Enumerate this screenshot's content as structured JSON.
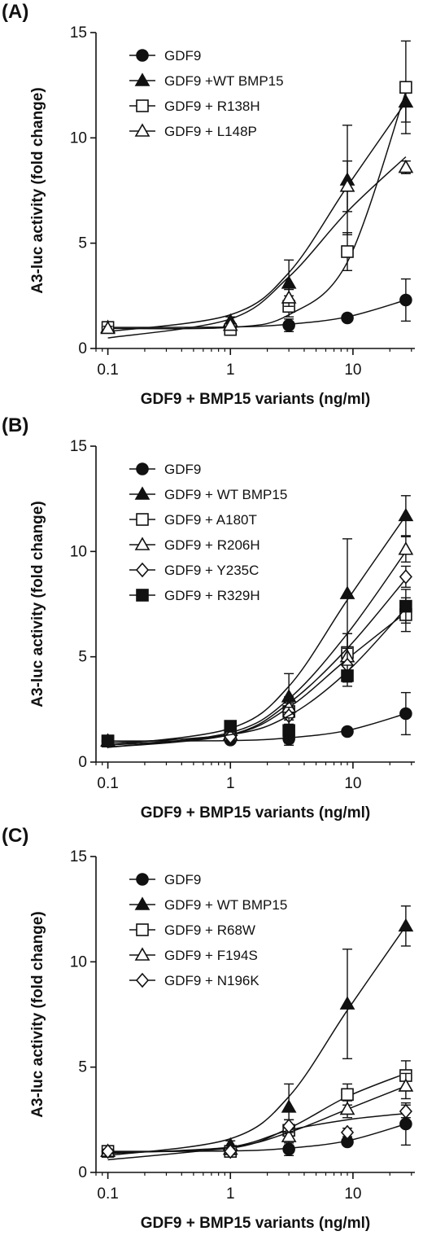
{
  "chart_data": [
    {
      "type": "line",
      "panel_label": "(A)",
      "xlabel": "GDF9 + BMP15 variants (ng/ml)",
      "ylabel": "A3-luc activity (fold change)",
      "xscale": "log",
      "xlim": [
        0.08,
        32
      ],
      "ylim": [
        0,
        15
      ],
      "xticks": [
        "0.1",
        "1",
        "10"
      ],
      "yticks": [
        "0",
        "5",
        "10",
        "15"
      ],
      "grid": false,
      "legend_position": "top-left",
      "x": [
        0.1,
        1,
        3,
        9,
        27
      ],
      "series": [
        {
          "name": "GDF9",
          "marker": "circle-filled",
          "values": [
            1.0,
            1.0,
            1.1,
            1.45,
            2.3
          ],
          "errors": [
            0.1,
            0.15,
            0.3,
            0.15,
            1.0
          ],
          "fit": [
            1.0,
            1.02,
            1.15,
            1.5,
            2.3
          ]
        },
        {
          "name": "GDF9 +WT BMP15",
          "marker": "triangle-filled",
          "values": [
            1.0,
            1.3,
            3.1,
            8.0,
            11.7
          ],
          "errors": [
            0.1,
            0.2,
            1.1,
            2.6,
            0.95
          ],
          "fit": [
            0.8,
            1.6,
            3.6,
            7.7,
            11.7
          ]
        },
        {
          "name": "GDF9 + R138H",
          "marker": "square-open",
          "values": [
            1.0,
            0.9,
            2.0,
            4.6,
            12.4
          ],
          "errors": [
            0.1,
            0.15,
            0.5,
            0.9,
            2.2
          ],
          "fit": [
            0.95,
            1.0,
            1.6,
            4.1,
            12.2
          ]
        },
        {
          "name": "GDF9 + L148P",
          "marker": "triangle-open",
          "values": [
            0.95,
            1.1,
            2.4,
            7.7,
            8.6
          ],
          "errors": [
            0.1,
            0.15,
            0.4,
            1.2,
            0.3
          ],
          "fit": [
            0.5,
            1.4,
            3.4,
            6.5,
            9.1
          ]
        }
      ]
    },
    {
      "type": "line",
      "panel_label": "(B)",
      "xlabel": "GDF9 + BMP15 variants (ng/ml)",
      "ylabel": "A3-luc activity (fold change)",
      "xscale": "log",
      "xlim": [
        0.08,
        32
      ],
      "ylim": [
        0,
        15
      ],
      "xticks": [
        "0.1",
        "1",
        "10"
      ],
      "yticks": [
        "0",
        "5",
        "10",
        "15"
      ],
      "grid": false,
      "legend_position": "top-left",
      "x": [
        0.1,
        1,
        3,
        9,
        27
      ],
      "series": [
        {
          "name": "GDF9",
          "marker": "circle-filled",
          "values": [
            1.0,
            1.05,
            1.1,
            1.45,
            2.3
          ],
          "errors": [
            0.1,
            0.15,
            0.3,
            0.15,
            1.0
          ],
          "fit": [
            1.0,
            1.02,
            1.15,
            1.5,
            2.3
          ]
        },
        {
          "name": "GDF9 + WT BMP15",
          "marker": "triangle-filled",
          "values": [
            1.0,
            1.3,
            3.1,
            8.0,
            11.7
          ],
          "errors": [
            0.1,
            0.2,
            1.1,
            2.6,
            0.95
          ],
          "fit": [
            0.8,
            1.6,
            3.6,
            7.7,
            11.7
          ]
        },
        {
          "name": "GDF9 + A180T",
          "marker": "square-open",
          "values": [
            1.0,
            1.3,
            2.4,
            5.2,
            7.0
          ],
          "errors": [
            0.1,
            0.2,
            0.4,
            0.9,
            0.8
          ],
          "fit": [
            0.8,
            1.3,
            2.6,
            4.9,
            7.1
          ]
        },
        {
          "name": "GDF9 + R206H",
          "marker": "triangle-open",
          "values": [
            1.0,
            1.5,
            2.6,
            5.0,
            10.1
          ],
          "errors": [
            0.1,
            0.2,
            0.5,
            1.1,
            0.6
          ],
          "fit": [
            0.7,
            1.4,
            3.0,
            6.1,
            10.0
          ]
        },
        {
          "name": "GDF9 + Y235C",
          "marker": "diamond-open",
          "values": [
            1.0,
            1.2,
            2.2,
            4.6,
            8.8
          ],
          "errors": [
            0.1,
            0.15,
            0.4,
            0.8,
            0.5
          ],
          "fit": [
            0.7,
            1.3,
            2.8,
            5.4,
            8.7
          ]
        },
        {
          "name": "GDF9 + R329H",
          "marker": "square-filled",
          "values": [
            1.0,
            1.7,
            1.5,
            4.1,
            7.4
          ],
          "errors": [
            0.1,
            0.2,
            0.6,
            0.5,
            0.8
          ],
          "fit": [
            0.9,
            1.3,
            2.2,
            4.3,
            7.3
          ]
        }
      ]
    },
    {
      "type": "line",
      "panel_label": "(C)",
      "xlabel": "GDF9 + BMP15 variants (ng/ml)",
      "ylabel": "A3-luc activity (fold change)",
      "xscale": "log",
      "xlim": [
        0.08,
        32
      ],
      "ylim": [
        0,
        15
      ],
      "xticks": [
        "0.1",
        "1",
        "10"
      ],
      "yticks": [
        "0",
        "5",
        "10",
        "15"
      ],
      "grid": false,
      "legend_position": "top-left",
      "x": [
        0.1,
        1,
        3,
        9,
        27
      ],
      "series": [
        {
          "name": "GDF9",
          "marker": "circle-filled",
          "values": [
            1.0,
            1.05,
            1.1,
            1.45,
            2.3
          ],
          "errors": [
            0.1,
            0.15,
            0.3,
            0.15,
            1.0
          ],
          "fit": [
            1.0,
            1.02,
            1.15,
            1.5,
            2.3
          ]
        },
        {
          "name": "GDF9 + WT BMP15",
          "marker": "triangle-filled",
          "values": [
            1.0,
            1.3,
            3.1,
            8.0,
            11.7
          ],
          "errors": [
            0.1,
            0.2,
            1.1,
            2.6,
            0.95
          ],
          "fit": [
            0.8,
            1.6,
            3.6,
            7.7,
            11.7
          ]
        },
        {
          "name": "GDF9 + R68W",
          "marker": "square-open",
          "values": [
            1.0,
            1.0,
            2.0,
            3.7,
            4.6
          ],
          "errors": [
            0.1,
            0.15,
            0.5,
            0.5,
            0.7
          ],
          "fit": [
            0.95,
            1.15,
            2.1,
            3.6,
            4.7
          ]
        },
        {
          "name": "GDF9 + F194S",
          "marker": "triangle-open",
          "values": [
            1.0,
            1.1,
            1.7,
            3.0,
            4.1
          ],
          "errors": [
            0.1,
            0.15,
            0.4,
            0.4,
            0.6
          ],
          "fit": [
            0.9,
            1.2,
            1.9,
            3.0,
            4.1
          ]
        },
        {
          "name": "GDF9 + N196K",
          "marker": "diamond-open",
          "values": [
            1.0,
            1.0,
            2.2,
            1.9,
            2.9
          ],
          "errors": [
            0.1,
            0.15,
            0.3,
            0.2,
            0.3
          ],
          "fit": [
            0.6,
            1.2,
            2.0,
            2.5,
            2.8
          ]
        }
      ]
    }
  ]
}
